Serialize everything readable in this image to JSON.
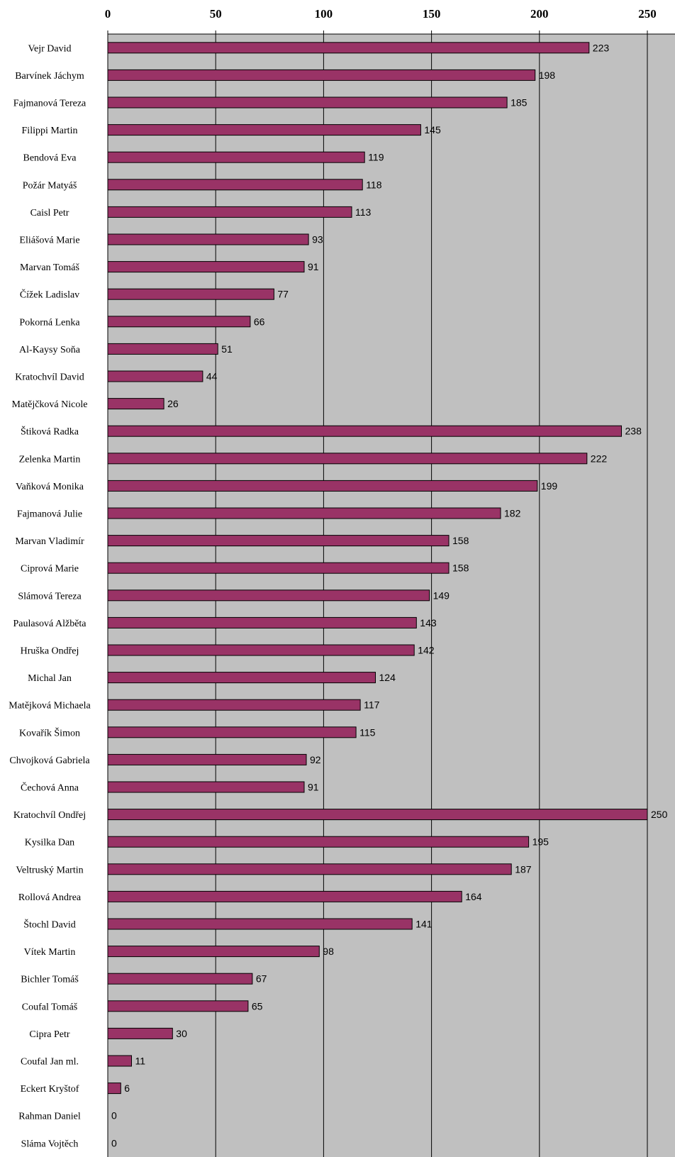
{
  "chart_data": {
    "type": "bar",
    "orientation": "horizontal",
    "title": "",
    "xlabel": "",
    "ylabel": "",
    "xlim": [
      0,
      250
    ],
    "xticks": [
      0,
      50,
      100,
      150,
      200,
      250
    ],
    "grid": true,
    "legend": "none",
    "colors": {
      "bar": "#993366",
      "plot_background": "#c0c0c0",
      "gridline": "#000000"
    },
    "categories": [
      "Vejr David",
      "Barvínek Jáchym",
      "Fajmanová Tereza",
      "Filippi Martin",
      "Bendová Eva",
      "Požár Matyáš",
      "Caisl Petr",
      "Eliášová Marie",
      "Marvan Tomáš",
      "Čížek Ladislav",
      "Pokorná Lenka",
      "Al-Kaysy Soňa",
      "Kratochvíl David",
      "Matějčková Nicole",
      "Štiková Radka",
      "Zelenka Martin",
      "Vaňková Monika",
      "Fajmanová Julie",
      "Marvan Vladimír",
      "Ciprová Marie",
      "Slámová Tereza",
      "Paulasová Alžběta",
      "Hruška Ondřej",
      "Michal Jan",
      "Matějková Michaela",
      "Kovařík Šimon",
      "Chvojková Gabriela",
      "Čechová Anna",
      "Kratochvíl Ondřej",
      "Kysilka Dan",
      "Veltruský Martin",
      "Rollová Andrea",
      "Štochl David",
      "Vítek Martin",
      "Bichler Tomáš",
      "Coufal Tomáš",
      "Cipra Petr",
      "Coufal Jan ml.",
      "Eckert Kryštof",
      "Rahman Daniel",
      "Sláma Vojtěch"
    ],
    "values": [
      223,
      198,
      185,
      145,
      119,
      118,
      113,
      93,
      91,
      77,
      66,
      51,
      44,
      26,
      238,
      222,
      199,
      182,
      158,
      158,
      149,
      143,
      142,
      124,
      117,
      115,
      92,
      91,
      250,
      195,
      187,
      164,
      141,
      98,
      67,
      65,
      30,
      11,
      6,
      0,
      0
    ]
  }
}
